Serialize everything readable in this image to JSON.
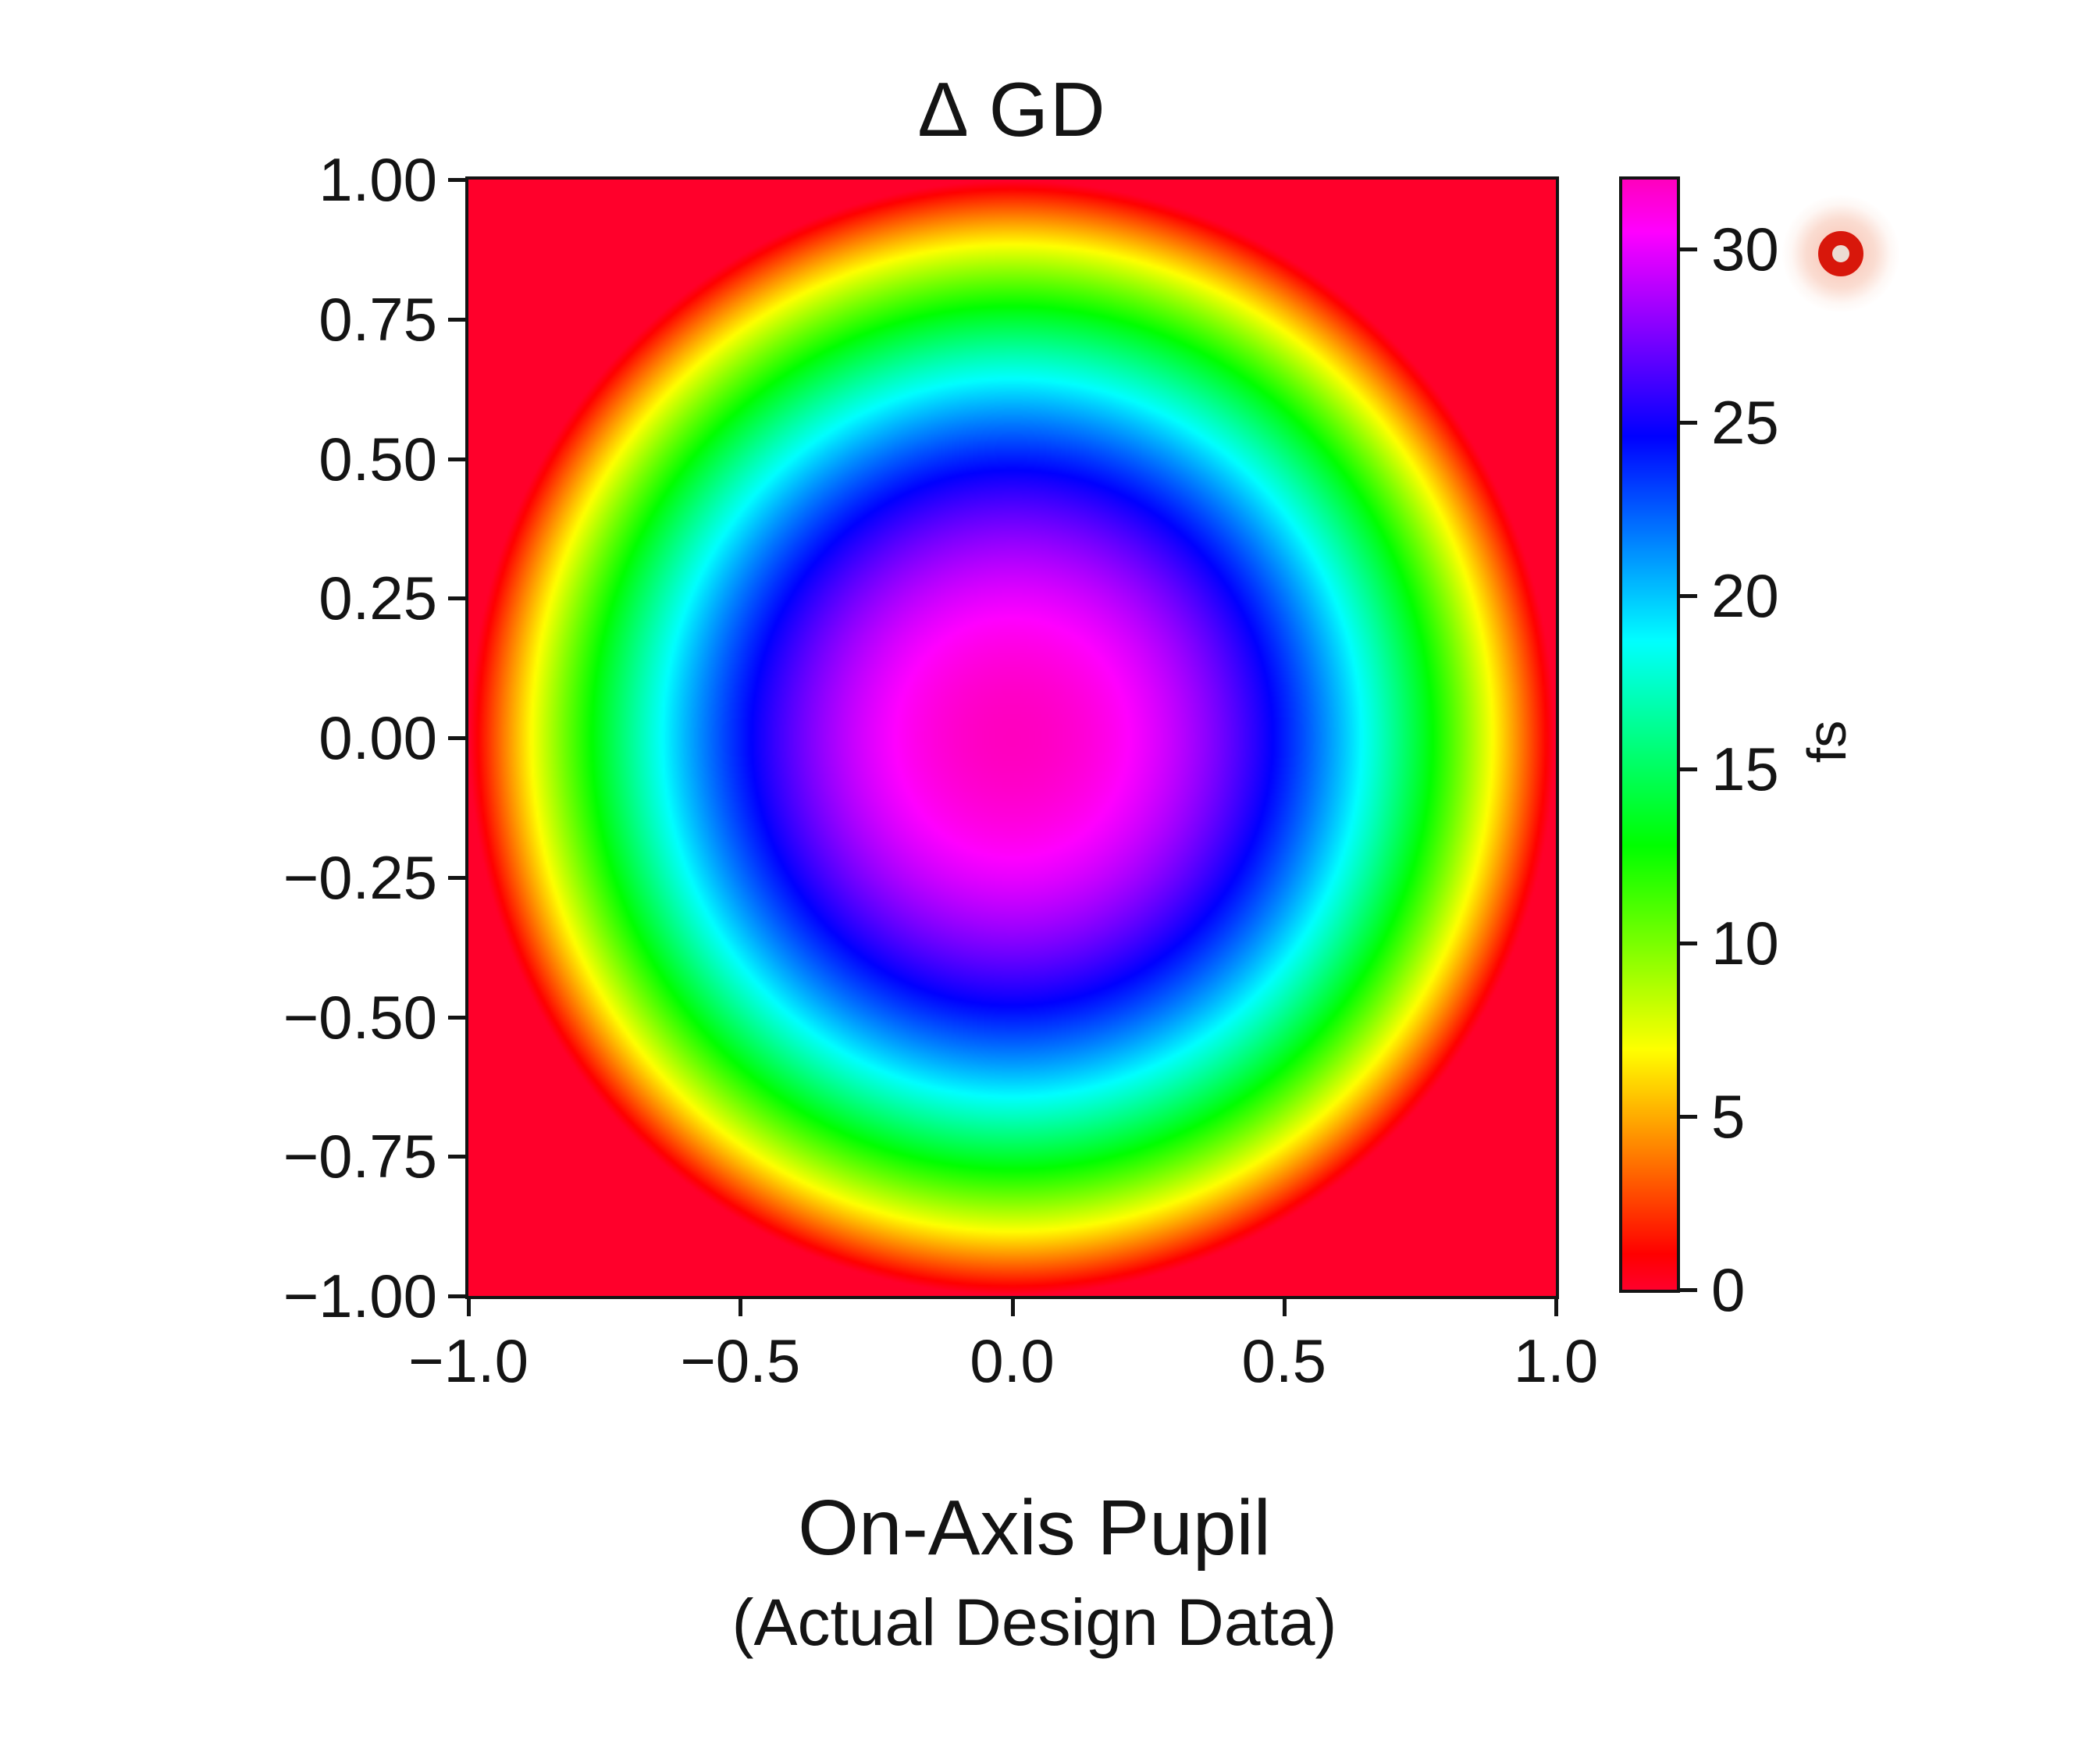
{
  "figure": {
    "title": "Δ GD",
    "caption": "On-Axis Pupil",
    "subcaption": "(Actual Design Data)",
    "background_color": "#ffffff",
    "text_color": "#141414"
  },
  "axes": {
    "x_tick_labels": [
      "−1.0",
      "−0.5",
      "0.0",
      "0.5",
      "1.0"
    ],
    "y_tick_labels": [
      "1.00",
      "0.75",
      "0.50",
      "0.25",
      "0.00",
      "−0.25",
      "−0.50",
      "−0.75",
      "−1.00"
    ],
    "x_range": [
      -1.0,
      1.0
    ],
    "y_range": [
      -1.0,
      1.0
    ]
  },
  "colorbar": {
    "unit_label": "fs",
    "tick_labels": [
      "30",
      "25",
      "20",
      "15",
      "10",
      "5",
      "0"
    ],
    "tick_values": [
      30,
      25,
      20,
      15,
      10,
      5,
      0
    ],
    "vmin": 0,
    "vmax": 32,
    "orientation": "vertical",
    "stops_bottom_to_top": [
      "#ff002b",
      "#ff6000",
      "#ffea00",
      "#8aff00",
      "#00ff00",
      "#00ff8a",
      "#00eaff",
      "#0060ff",
      "#2b00ff",
      "#b400ff",
      "#ff00bf"
    ]
  },
  "pointer_icon": {
    "ring_color": "#d8170b",
    "hole_color": "#ecdcd2",
    "glow_color": "#f6b29e"
  },
  "chart_data": {
    "type": "heatmap",
    "title": "Δ GD",
    "xlabel": "",
    "ylabel": "",
    "x_ticks": [
      -1.0,
      -0.5,
      0.0,
      0.5,
      1.0
    ],
    "y_ticks": [
      1.0,
      0.75,
      0.5,
      0.25,
      0.0,
      -0.25,
      -0.5,
      -0.75,
      -1.0
    ],
    "extent": {
      "x": [
        -1,
        1
      ],
      "y": [
        -1,
        1
      ]
    },
    "value_unit": "fs",
    "value_range": [
      0,
      32
    ],
    "colormap": {
      "name": "gist_rainbow_like",
      "hue_start_deg": -10,
      "hue_span_deg": 325,
      "saturation": 1,
      "lightness": 0.5
    },
    "pattern": "radially symmetric concentric rings, red (0 fs) at pupil edge and corners rising to magenta peak (~32 fs) at center",
    "value_profile": "delta_gd_fs(r) = max(0, 32 * (1 - r^2)), r = sqrt(x^2 + y^2)",
    "peak_value_fs": 32,
    "radial_samples": {
      "r": [
        0.0,
        0.1,
        0.2,
        0.3,
        0.4,
        0.5,
        0.6,
        0.7,
        0.8,
        0.9,
        1.0
      ],
      "delta_gd_fs": [
        32.0,
        31.7,
        30.7,
        29.1,
        26.9,
        24.0,
        20.5,
        16.3,
        11.5,
        6.1,
        0.0
      ]
    },
    "legend": "none",
    "grid": false,
    "colorbar_position": "right"
  },
  "layout_text": {
    "note_values_are_visible_only": true
  }
}
